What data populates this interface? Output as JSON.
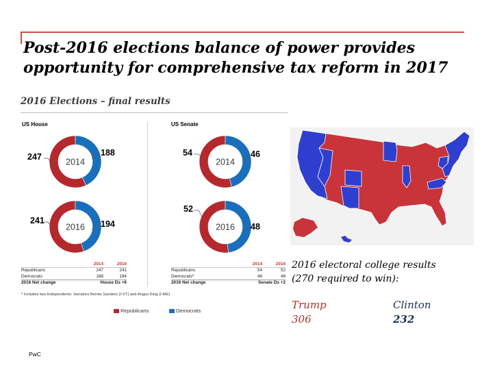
{
  "slide": {
    "title_lines": [
      "Post-2016 elections balance of power provides",
      "opportunity for comprehensive tax reform in 2017"
    ],
    "footer": "PwC"
  },
  "colors": {
    "republican": "#b5282e",
    "democrat": "#1a6fbc",
    "accent_rule": "#c9503c",
    "trump_text": "#b03024",
    "clinton_text": "#1c2f52"
  },
  "chart_data": [
    {
      "type": "pie",
      "title": "2016 Elections – final results",
      "panel": "US House",
      "year": "2014",
      "categories": [
        "Republicans",
        "Democrats"
      ],
      "values": [
        247,
        188
      ],
      "labels": [
        "247",
        "188"
      ]
    },
    {
      "type": "pie",
      "panel": "US House",
      "year": "2016",
      "categories": [
        "Republicans",
        "Democrats"
      ],
      "values": [
        241,
        194
      ],
      "labels": [
        "241",
        "194"
      ]
    },
    {
      "type": "pie",
      "panel": "US Senate",
      "year": "2014",
      "categories": [
        "Republicans",
        "Democrats"
      ],
      "values": [
        54,
        46
      ],
      "labels": [
        "54",
        "46"
      ]
    },
    {
      "type": "pie",
      "panel": "US Senate",
      "year": "2016",
      "categories": [
        "Republicans",
        "Democrats"
      ],
      "values": [
        52,
        48
      ],
      "labels": [
        "52",
        "48"
      ]
    },
    {
      "type": "table",
      "panel": "US House",
      "columns": [
        "",
        "2014",
        "2016"
      ],
      "rows": [
        [
          "Republicans",
          "247",
          "241"
        ],
        [
          "Democrats",
          "188",
          "194"
        ]
      ],
      "net_change_label": "2016 Net change",
      "net_change_value": "House Ds +6"
    },
    {
      "type": "table",
      "panel": "US Senate",
      "columns": [
        "",
        "2014",
        "2016"
      ],
      "rows": [
        [
          "Republicans",
          "54",
          "52"
        ],
        [
          "Democrats*",
          "46",
          "48"
        ]
      ],
      "net_change_label": "2016 Net change",
      "net_change_value": "Senate Ds +2"
    }
  ],
  "chart_text": {
    "title": "2016 Elections – final results",
    "house_label": "US House",
    "senate_label": "US Senate",
    "footnote": "* Includes two Independents: Senators Bernie Sanders (I-VT) and Angus King (I-ME)",
    "legend": [
      "Republicans",
      "Democrats"
    ]
  },
  "electoral": {
    "caption_line1": "2016 electoral college results",
    "caption_line2": "(270 required to win):",
    "trump_name": "Trump",
    "trump_votes": "306",
    "clinton_name": "Clinton",
    "clinton_votes": "232"
  }
}
